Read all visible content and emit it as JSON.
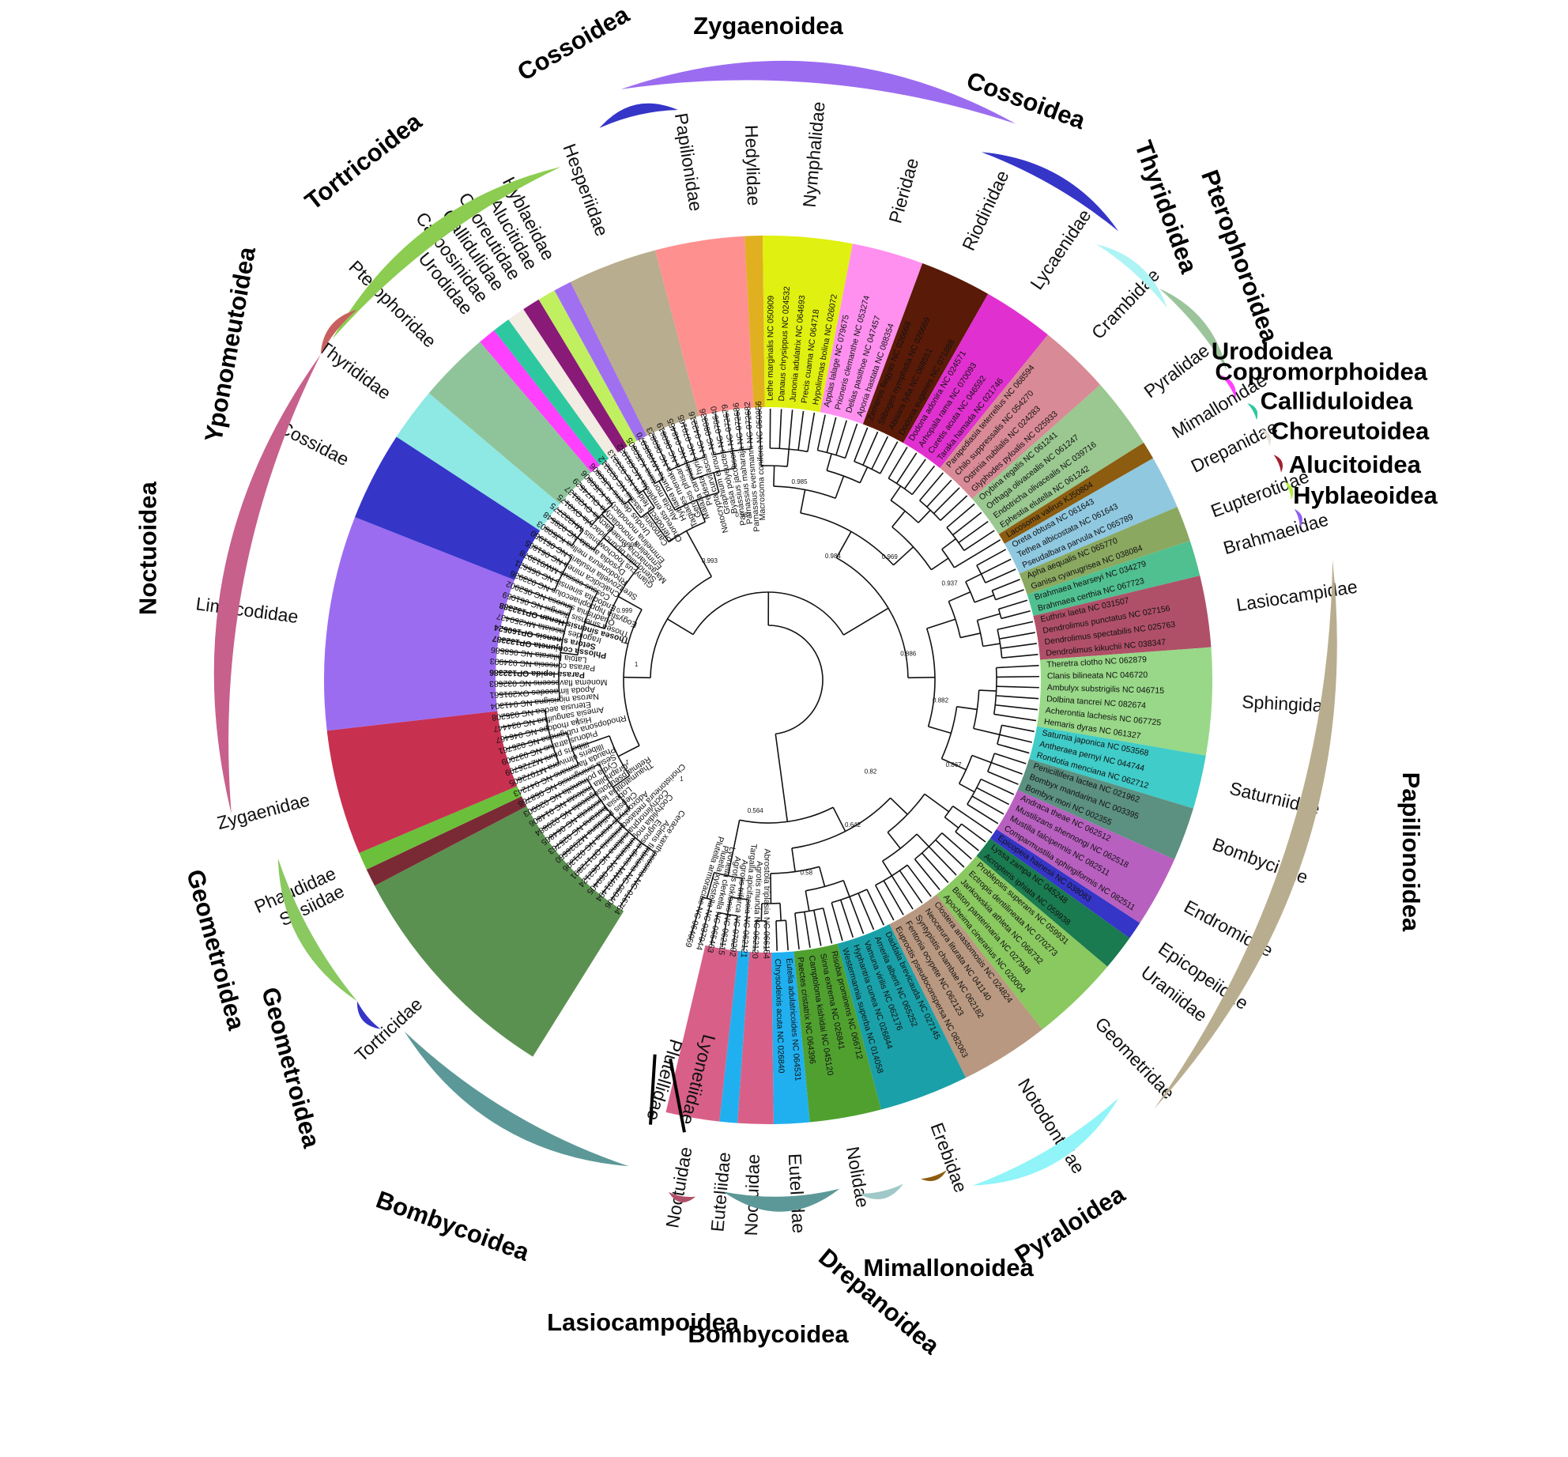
{
  "families": [
    {
      "name": "Tortricidae",
      "color": "#5b9150",
      "superfamily": "Tortricoidea",
      "taxa": [
        "Cerace xanthocosma NC 016754",
        "Acleris fimbriana NC 050406",
        "Eugnosta dives MW491494",
        "Cochylidia moguntiana NC 060405",
        "Cochylimorpha cultana NC 062124",
        "Choristoneura metasequoiacola OP172891",
        "Adoxophyes orana NC 021396",
        "Clepsis pallidana MZ936650",
        "Lobesia botrana NC 025763",
        "Thaumatotibia leucotreta NC 064865",
        "Retinia pseudotsugaicola NC 029884",
        "Grapholita molesta NC 014806",
        "Cydia pomonella NC 020003"
      ]
    },
    {
      "name": "Sesiidae",
      "color": "#7a2a35",
      "superfamily": "Cossoidea",
      "taxa": [
        "Sesia siningensis NC 058756"
      ]
    },
    {
      "name": "Phaudidae",
      "color": "#6bbf3a",
      "superfamily": "Zygaenoidea",
      "taxa": [
        "Phauda flammans NC 047243"
      ]
    },
    {
      "name": "Zygaenidae",
      "color": "#c83050",
      "superfamily": "Zygaenoidea",
      "taxa": [
        "Illiberis ulmivora MT072605",
        "Illiberis pruni MZ726799",
        "Pidorus atratus NC 037909",
        "Rhodopsona rubiginosa NC 025761",
        "Histia rhodope NC 046467",
        "Amesia sanguiflua NC 034447",
        "Eterusia aedea NC 035208"
      ]
    },
    {
      "name": "Limacodidae",
      "color": "#9b6cf0",
      "superfamily": "Zygaenoidea",
      "taxa": [
        "Narosa nigrisigna NC 041304",
        "Apoda limacodes OX291561",
        "Monema flavescens NC 032683",
        "Parasa lepida OP132386",
        "Parasa consocia NC 034993",
        "Latoia hilarata NC 068586",
        "Phlossa conjuncta OP132387",
        "Setora sinensis OP160524",
        "Iragoides fasciata MK250437",
        "Thosea sinensis Henan OP132388",
        "Thosea sinensis Jiangxi NC 061059",
        "Quadrisnia sinuosa NC 052902"
      ]
    },
    {
      "name": "Cossidae",
      "color": "#3535c8",
      "superfamily": "Cossoidea",
      "taxa": [
        "Eogystia hippophaecolus NC 023936",
        "Endoclita sinensis NC 065621",
        "Cossus cossus MW913978",
        "Chalcidica minea NC 061865",
        "Streltzoviella insularis NC 061950"
      ]
    },
    {
      "name": "Thyrididae",
      "color": "#8ee8e4",
      "superfamily": "Thyridoidea",
      "taxa": [
        "Rhodoneura mellea KJ50803",
        "Dysodia aurata NC 028548",
        "Glanycus foochowensis MH332775"
      ]
    },
    {
      "name": "Pterophoridae",
      "color": "#8fc49a",
      "superfamily": "Pterophoroidea",
      "taxa": [
        "Stenoptilia bipunctidactyla OX0175",
        "Marasmarcha lunaedactyla OV28137",
        "Emmelina monodactyla OU74529",
        "Emmelina monodactyla KJ50806"
      ]
    },
    {
      "name": "Urodidae",
      "color": "#ff40ff",
      "superfamily": "Urodoidea",
      "taxa": [
        "Urodus decens KJ50806"
      ]
    },
    {
      "name": "Carposinidae",
      "color": "#2ec8a0",
      "superfamily": "Copromorphoidea",
      "taxa": [
        "Carposina sasakii NC 023212"
      ]
    },
    {
      "name": "Callidulidae",
      "color": "#f2ece2",
      "superfamily": "Calliduloidea",
      "taxa": [
        "Pterodecta felderi NC 023213"
      ]
    },
    {
      "name": "Choreutidae",
      "color": "#8a1a78",
      "superfamily": "Choreutoidea",
      "taxa": [
        "Choreutis emplecta MG681932"
      ]
    },
    {
      "name": "Alucitidae",
      "color": "#c0f060",
      "superfamily": "Alucitoidea",
      "taxa": [
        "Alucita montana KJ50805"
      ]
    },
    {
      "name": "Hyblaeidae",
      "color": "#a070f0",
      "superfamily": "Hyblaeoidea",
      "taxa": [
        "Hyblaea puera MW885970"
      ]
    },
    {
      "name": "Hesperiidae",
      "color": "#b8ad8e",
      "superfamily": "Papilionoidea",
      "taxa": [
        "Tagiades menaka NC 060823",
        "Gerosis phisara NC 060819",
        "Malaza carmides NC 048455",
        "Pedesta hyrie NC 070165",
        "Notocrypta curvifascia NC 042216"
      ]
    },
    {
      "name": "Papilionidae",
      "color": "#ff9090",
      "superfamily": "Papilionoidea",
      "taxa": [
        "Graphium eurous NC 080336",
        "Byasa polyeuctes NC 079640",
        "Parnassius jacobsoni NC 072679",
        "Parnassius maharaja NC 072686",
        "Parnassius eversmanni NC 072682"
      ]
    },
    {
      "name": "Hedylidae",
      "color": "#e0b020",
      "superfamily": "Papilionoidea",
      "taxa": [
        "Macrosoma conifera NC 050856"
      ]
    },
    {
      "name": "Nymphalidae",
      "color": "#e0f010",
      "superfamily": "Papilionoidea",
      "taxa": [
        "Lethe marginalis NC 050909",
        "Danaus chrysippus NC 024532",
        "Junonia adulatrix NC 064693",
        "Precis cuama NC 064718",
        "Hypolimnas bolina NC 026072"
      ]
    },
    {
      "name": "Pieridae",
      "color": "#ff90f0",
      "superfamily": "Papilionoidea",
      "taxa": [
        "Appias lalage NC 079675",
        "Prioneris clemanthe NC 053274",
        "Delias pasithoe NC 047457",
        "Aporia hastata NC 088354"
      ]
    },
    {
      "name": "Riodinidae",
      "color": "#5a1a08",
      "superfamily": "Papilionoidea",
      "taxa": [
        "Zemeros flegyas NC 026668",
        "Stiboges nymphidia NC 026669",
        "Abisara fylla NC 068551",
        "Dodona eugenes NC 071888"
      ]
    },
    {
      "name": "Lycaenidae",
      "color": "#e030d0",
      "superfamily": "Papilionoidea",
      "taxa": [
        "Dodona adonira NC 024571",
        "Arhopala rama NC 070093",
        "Curetis acuta NC 046592",
        "Taraka hamada NC 021746"
      ]
    },
    {
      "name": "Crambidae",
      "color": "#d88a96",
      "superfamily": "Pyraloidea",
      "taxa": [
        "Parapediasia teterrellus NC 068594",
        "Chilo suppressalis NC 054270",
        "Ostrinia nubilalis NC 024283",
        "Glyphodes pyloalis NC 025933"
      ]
    },
    {
      "name": "Pyralidae",
      "color": "#9ac890",
      "superfamily": "Pyraloidea",
      "taxa": [
        "Orybina regalis NC 061241",
        "Orthaga olivacealis NC 061247",
        "Endotricha olivacealis NC 039716",
        "Ephestia elutella NC 061242"
      ]
    },
    {
      "name": "Mimallonidae",
      "color": "#8c5c10",
      "superfamily": "Mimallonoidea",
      "taxa": [
        "Lacosoma valirus KJ50804"
      ]
    },
    {
      "name": "Drepanidae",
      "color": "#90c8e0",
      "superfamily": "Drepanoidea",
      "taxa": [
        "Oreta obtusa NC 061643",
        "Tethea albicostata NC 061643",
        "Pseudalbara parvula NC 065789"
      ]
    },
    {
      "name": "Eupterotidae",
      "color": "#8aa860",
      "superfamily": "Bombycoidea",
      "taxa": [
        "Apha aequalis NC 065770",
        "Ganisa cyanugrisea NC 038084"
      ]
    },
    {
      "name": "Brahmaeidae",
      "color": "#50c090",
      "superfamily": "Bombycoidea",
      "taxa": [
        "Brahmaea hearseyi NC 034279",
        "Brahmaea certhia NC 067723"
      ]
    },
    {
      "name": "Lasiocampidae",
      "color": "#b05068",
      "superfamily": "Lasiocampoidea",
      "taxa": [
        "Euthrix laeta NC 031507",
        "Dendrolimus punctatus NC 027156",
        "Dendrolimus spectabilis NC 025763",
        "Dendrolimus kikuchii NC 038347"
      ]
    },
    {
      "name": "Sphingidae",
      "color": "#98d888",
      "superfamily": "Bombycoidea",
      "taxa": [
        "Theretra clotho NC 062879",
        "Clanis bilineata NC 046720",
        "Ambulyx substrigilis NC 046715",
        "Dolbina tancrei NC 082674",
        "Acherontia lachesis NC 067725",
        "Hemaris dyras NC 061327"
      ]
    },
    {
      "name": "Saturniidae",
      "color": "#40ccc8",
      "superfamily": "Bombycoidea",
      "taxa": [
        "Saturnia japonica NC 053568",
        "Antheraea pernyi NC 044744",
        "Rondotia menciana NC 062712"
      ]
    },
    {
      "name": "Bombycidae",
      "color": "#5c9080",
      "superfamily": "Bombycoidea",
      "taxa": [
        "Penicillifera lactea NC 021962",
        "Bombyx mandarina NC 003395",
        "Bombyx mori NC 002355"
      ]
    },
    {
      "name": "Endromidae",
      "color": "#b860c0",
      "superfamily": "Bombycoidea",
      "taxa": [
        "Andraca theae NC 062512",
        "Mustilizans shennongi NC 062518",
        "Mustilia falcipennis NC 082511",
        "Comparmustilia sphingiformis NC 082511"
      ]
    },
    {
      "name": "Epicopeiidae",
      "color": "#3535c8",
      "superfamily": "Geometroidea",
      "taxa": [
        "Epicopeia hainesii NC 038083"
      ]
    },
    {
      "name": "Uraniidae",
      "color": "#1a7a50",
      "superfamily": "Geometroidea",
      "taxa": [
        "Lyssa zampa NC 045248",
        "Acropteris iphiata NC 059938"
      ]
    },
    {
      "name": "Geometridae",
      "color": "#8ac860",
      "superfamily": "Geometroidea",
      "taxa": [
        "Problepsis superans NC 059931",
        "Ectropis dentilineata NC 070273",
        "Jankowskia athleta NC 066732",
        "Biston panterinaria NC 027948",
        "Apocheima cinerarius NC 020004"
      ]
    },
    {
      "name": "Notodontidae",
      "color": "#b89880",
      "superfamily": "Noctuoidea",
      "taxa": [
        "Clostera anastomosis NC 024824",
        "Neocerura liturata NC 041140",
        "Syntypistis chambae NC 062182",
        "Fentonia ocypete NC 062123",
        "Euproctis pseudoconspersa NC 082063"
      ]
    },
    {
      "name": "Erebidae",
      "color": "#1aa0a8",
      "superfamily": "Noctuoidea",
      "taxa": [
        "Daddala brevicauda NC 027145",
        "Amerila alberti NC 065252",
        "Vamuna virilis NC 062176",
        "Hyphantria cunea NC 026844",
        "Westermannia superba NC 014058"
      ]
    },
    {
      "name": "Nolidae",
      "color": "#50a030",
      "superfamily": "Noctuoidea",
      "taxa": [
        "Risoba prominens NC 066712",
        "Sinna extrema NC 026841",
        "Camptoloma kishidai NC 045120",
        "Paectes cristatrix NC 064396"
      ]
    },
    {
      "name": "Euteliidae",
      "color": "#20b0f0",
      "superfamily": "Noctuoidea",
      "taxa": [
        "Eutelia adulatricoides NC 064531",
        "Chrysodeixis acuta NC 026840"
      ]
    },
    {
      "name": "Noctuidae",
      "color": "#d86088",
      "superfamily": "Noctuoidea",
      "taxa": [
        "Abrostola triplasia NC 066154",
        "Agrotis munda NC 062120"
      ]
    },
    {
      "name": "Euteliidae",
      "color": "#20b0f0",
      "superfamily": "Noctuoidea",
      "taxa": [
        "Targalla apicifascia NC 062121"
      ]
    },
    {
      "name": "Noctuidae",
      "color": "#d86088",
      "superfamily": "Noctuoidea",
      "taxa": [
        "Agrotis trifurca NC 070292",
        "Agrotis tokionis NC 062115",
        "Lyonetia clerkella NC 065463"
      ]
    },
    {
      "name": "Lyonetiidae",
      "color": "#ffffff",
      "superfamily": "Yponomeutoidea",
      "taxa": [
        "Plutella xylostella NC 037944"
      ]
    },
    {
      "name": "Plutellidae",
      "color": "#ffffff",
      "superfamily": "Yponomeutoidea",
      "taxa": [
        "Plutella armoraciae NC 064059"
      ]
    }
  ],
  "superfamilies": [
    {
      "name": "Tortricoidea",
      "color": "#8ccc50"
    },
    {
      "name": "Cossoidea",
      "color": "#3535c8"
    },
    {
      "name": "Zygaenoidea",
      "color": "#9b6cf0"
    },
    {
      "name": "Cossoidea",
      "color": "#3535c8"
    },
    {
      "name": "Thyridoidea",
      "color": "#aef4f4"
    },
    {
      "name": "Pterophoroidea",
      "color": "#9bc49a"
    },
    {
      "name": "Urodoidea",
      "color": "#ff40ff"
    },
    {
      "name": "Copromorphoidea",
      "color": "#2ec8a0"
    },
    {
      "name": "Calliduloidea",
      "color": "#e8e0d6"
    },
    {
      "name": "Choreutoidea",
      "color": "#a02030"
    },
    {
      "name": "Alucitoidea",
      "color": "#b0f040"
    },
    {
      "name": "Hyblaeoidea",
      "color": "#9060f0"
    },
    {
      "name": "Papilionoidea",
      "color": "#b8ad8e"
    },
    {
      "name": "Pyraloidea",
      "color": "#90f4f8"
    },
    {
      "name": "Mimallonoidea",
      "color": "#8c5c10"
    },
    {
      "name": "Drepanoidea",
      "color": "#a0c8c8"
    },
    {
      "name": "Bombycoidea",
      "color": "#5c9898"
    },
    {
      "name": "Lasiocampoidea",
      "color": "#b05068"
    },
    {
      "name": "Bombycoidea",
      "color": "#5c9898"
    },
    {
      "name": "Geometroidea",
      "color": "#3535c8"
    },
    {
      "name": "Geometroidea",
      "color": "#8ac860"
    },
    {
      "name": "Noctuoidea",
      "color": "#c8608c"
    },
    {
      "name": "Yponomeutoidea",
      "color": "#c86060"
    }
  ],
  "support_values": [
    "1",
    "1",
    "1",
    "1",
    "0.999",
    "0.998",
    "0.993",
    "0.987",
    "0.985",
    "0.984",
    "0.969",
    "0.937",
    "0.886",
    "0.882",
    "0.867",
    "0.82",
    "0.642",
    "0.58",
    "0.564"
  ]
}
